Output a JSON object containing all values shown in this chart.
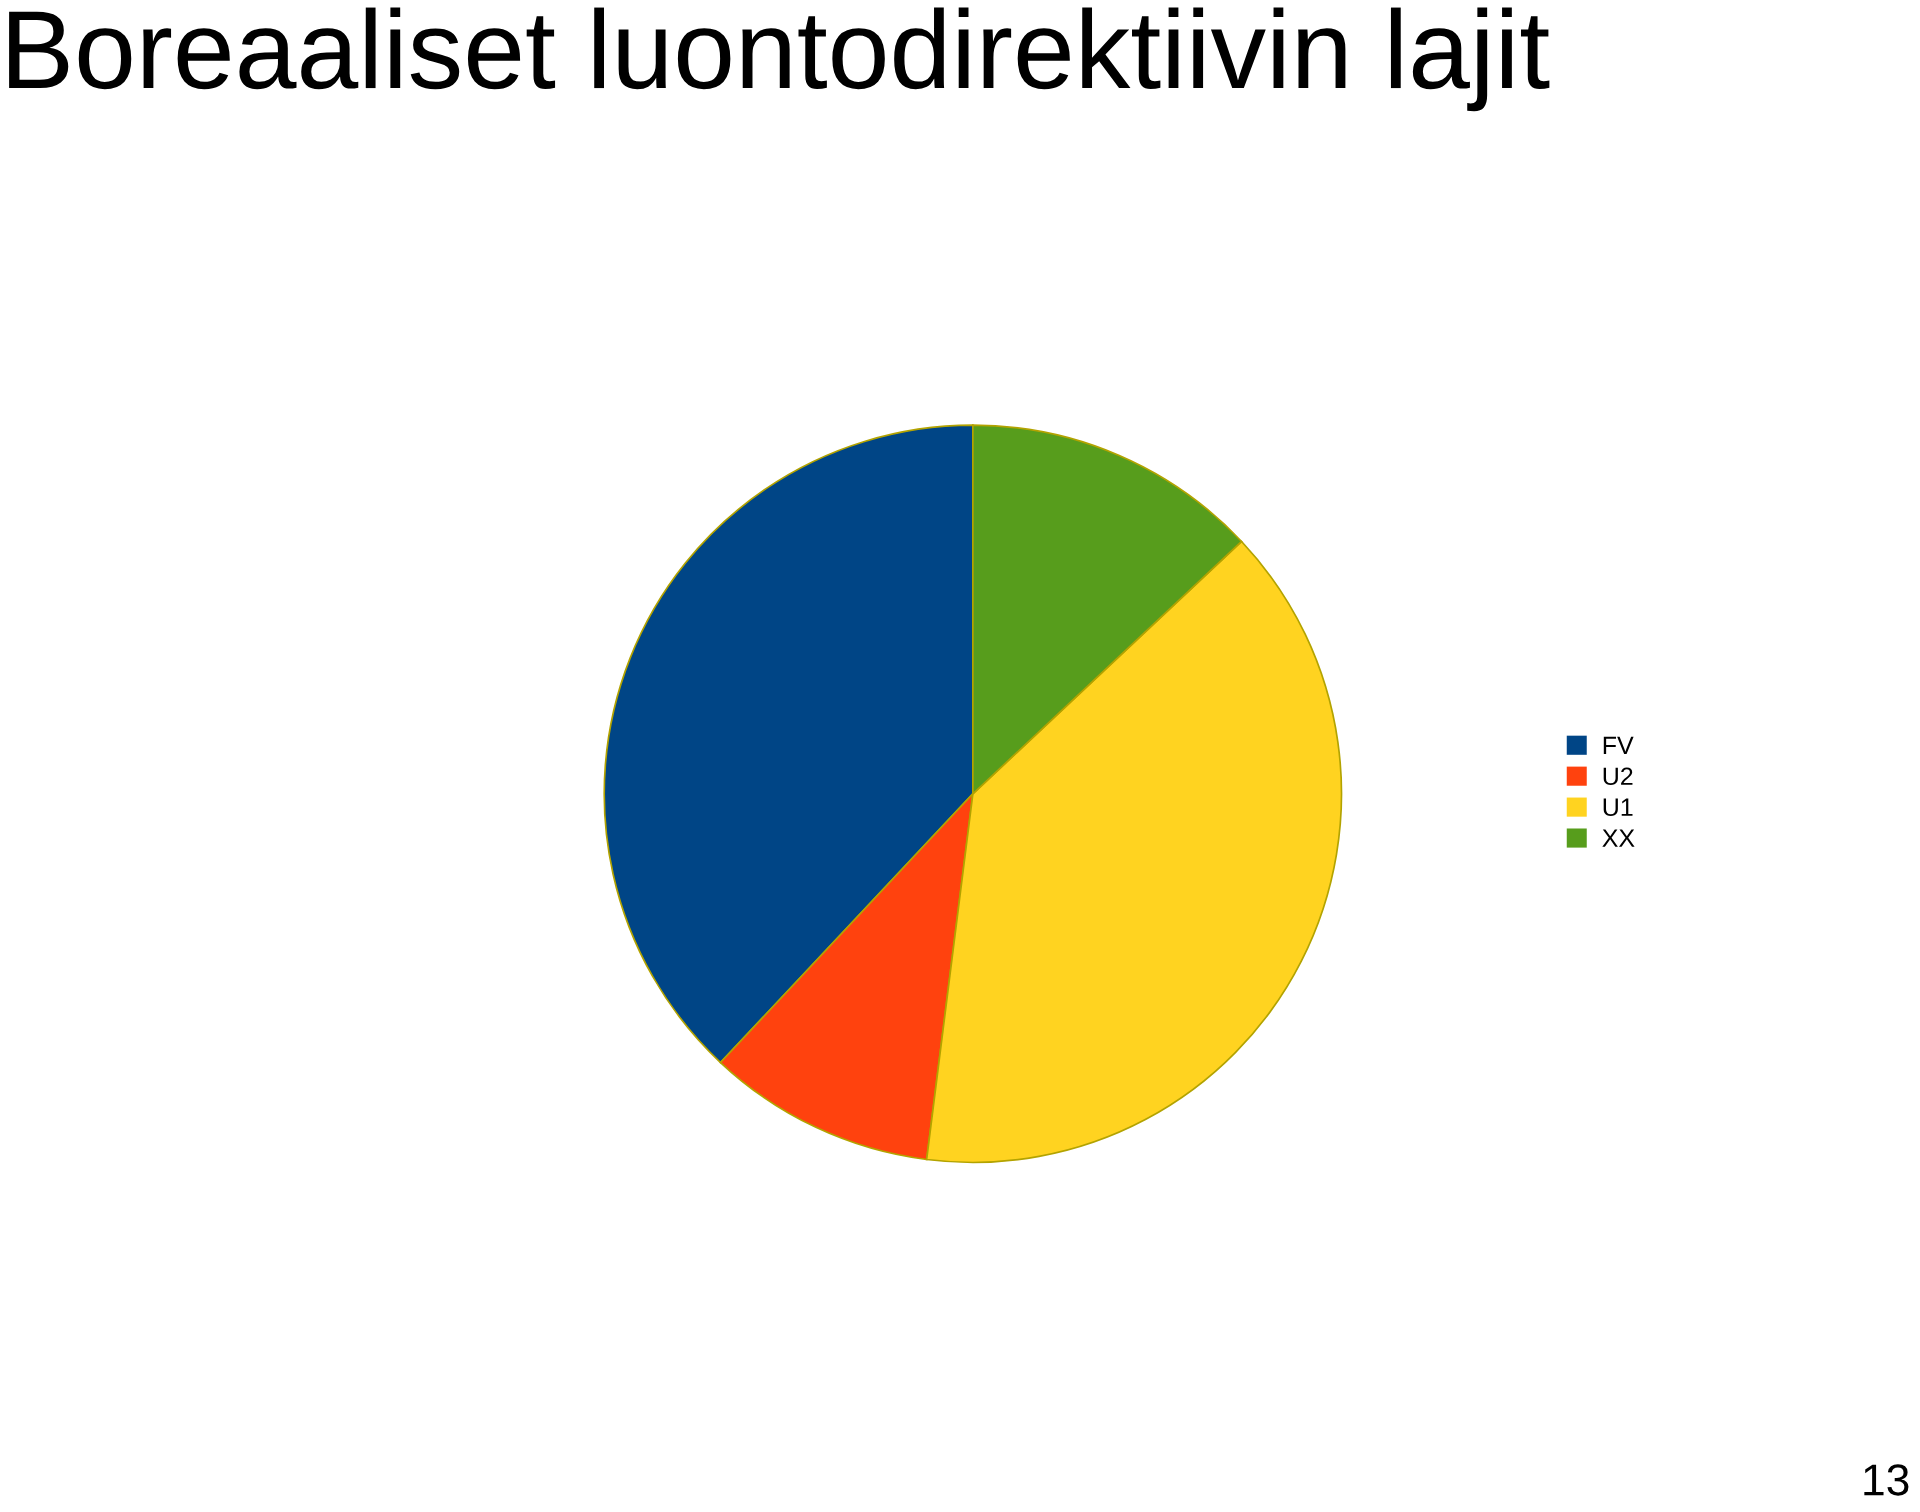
{
  "chart_data": {
    "type": "pie",
    "title": "Boreaaliset luontodirektiivin lajit",
    "categories": [
      "FV",
      "U2",
      "U1",
      "XX"
    ],
    "values": [
      38,
      10,
      39,
      13
    ],
    "colors": [
      "#004586",
      "#ff420e",
      "#ffd320",
      "#579d1c"
    ],
    "legend": "right",
    "annotations": [
      "13"
    ]
  }
}
